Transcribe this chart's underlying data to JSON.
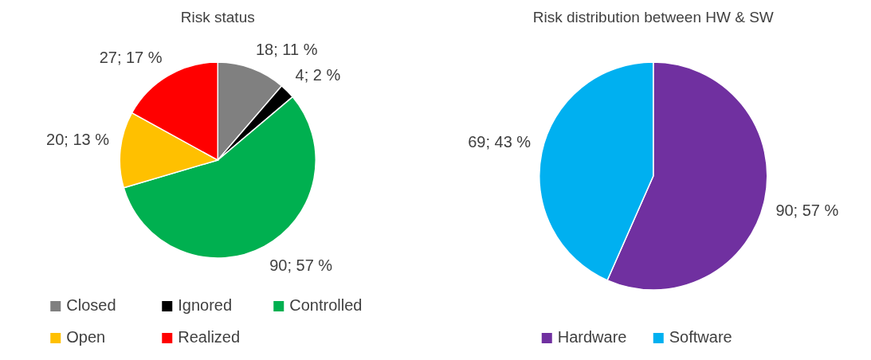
{
  "chart_data": [
    {
      "type": "pie",
      "title": "Risk status",
      "categories": [
        "Closed",
        "Ignored",
        "Controlled",
        "Open",
        "Realized"
      ],
      "values": [
        18,
        4,
        90,
        20,
        27
      ],
      "colors": [
        "#808080",
        "#000000",
        "#00b050",
        "#ffc000",
        "#ff0000"
      ],
      "value_labels": [
        "18; 11 %",
        "4; 2 %",
        "90; 57 %",
        "20; 13 %",
        "27; 17 %"
      ],
      "legend": "bottom"
    },
    {
      "type": "pie",
      "title": "Risk distribution between HW & SW",
      "categories": [
        "Hardware",
        "Software"
      ],
      "values": [
        90,
        69
      ],
      "colors": [
        "#7030a0",
        "#00b0f0"
      ],
      "value_labels": [
        "90; 57 %",
        "69; 43 %"
      ],
      "legend": "bottom"
    }
  ]
}
